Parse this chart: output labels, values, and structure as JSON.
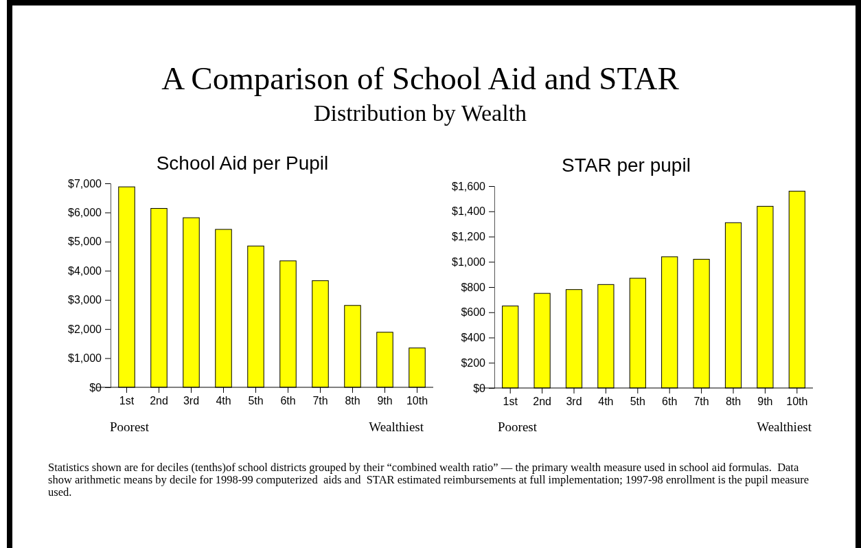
{
  "chart_data": [
    {
      "type": "other",
      "title": "A Comparison of School Aid and STAR",
      "subtitle": "Distribution by Wealth"
    },
    {
      "type": "bar",
      "title": "School Aid per Pupil",
      "categories": [
        "1st",
        "2nd",
        "3rd",
        "4th",
        "5th",
        "6th",
        "7th",
        "8th",
        "9th",
        "10th"
      ],
      "values": [
        6880,
        6140,
        5820,
        5420,
        4850,
        4340,
        3660,
        2810,
        1890,
        1350
      ],
      "color": "#ffff00",
      "ylim": [
        0,
        7000
      ],
      "yticks": [
        {
          "value": 0,
          "label": "$0"
        },
        {
          "value": 1000,
          "label": "$1,000"
        },
        {
          "value": 2000,
          "label": "$2,000"
        },
        {
          "value": 3000,
          "label": "$3,000"
        },
        {
          "value": 4000,
          "label": "$4,000"
        },
        {
          "value": 5000,
          "label": "$5,000"
        },
        {
          "value": 6000,
          "label": "$6,000"
        },
        {
          "value": 7000,
          "label": "$7,000"
        }
      ],
      "annotations": [
        "Poorest",
        "Wealthiest"
      ]
    },
    {
      "type": "bar",
      "title": "STAR per pupil",
      "categories": [
        "1st",
        "2nd",
        "3rd",
        "4th",
        "5th",
        "6th",
        "7th",
        "8th",
        "9th",
        "10th"
      ],
      "values": [
        650,
        750,
        780,
        820,
        870,
        1040,
        1020,
        1310,
        1440,
        1560
      ],
      "color": "#ffff00",
      "ylim": [
        0,
        1600
      ],
      "yticks": [
        {
          "value": 0,
          "label": "$0"
        },
        {
          "value": 200,
          "label": "$200"
        },
        {
          "value": 400,
          "label": "$400"
        },
        {
          "value": 600,
          "label": "$600"
        },
        {
          "value": 800,
          "label": "$800"
        },
        {
          "value": 1000,
          "label": "$1,000"
        },
        {
          "value": 1200,
          "label": "$1,200"
        },
        {
          "value": 1400,
          "label": "$1,400"
        },
        {
          "value": 1600,
          "label": "$1,600"
        }
      ],
      "annotations": [
        "Poorest",
        "Wealthiest"
      ]
    },
    {
      "type": "other",
      "annotations": [
        "Statistics shown are for deciles (tenths)of school districts grouped by their “combined wealth ratio” — the primary wealth measure used in school aid formulas.  Data show arithmetic means by decile for 1998-99 computerized  aids and  STAR estimated reimbursements at full implementation; 1997-98 enrollment is the pupil measure used."
      ]
    }
  ]
}
